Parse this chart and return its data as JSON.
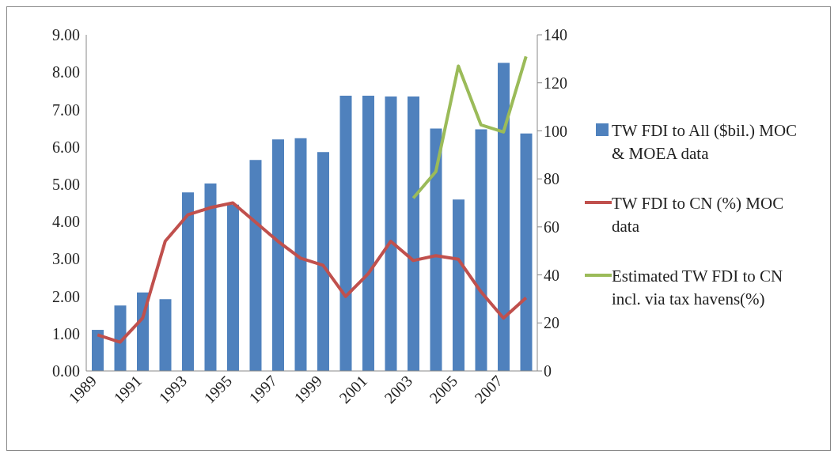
{
  "chart_data": {
    "type": "bar",
    "categories": [
      "1989",
      null,
      "1991",
      null,
      "1993",
      null,
      "1995",
      null,
      "1997",
      null,
      "1999",
      null,
      "2001",
      null,
      "2003",
      null,
      "2005",
      null,
      "2007",
      null
    ],
    "series": [
      {
        "name": "TW FDI to All ($bil.) MOC & MOEA  data",
        "color": "#4f81bd",
        "values": [
          1.1,
          1.75,
          2.1,
          1.92,
          4.78,
          5.02,
          4.45,
          5.65,
          6.2,
          6.23,
          5.86,
          7.37,
          7.37,
          7.35,
          7.35,
          6.49,
          4.59,
          6.47,
          8.25,
          6.36
        ]
      },
      {
        "name": "TW FDI to CN (%) MOC data",
        "type": "line",
        "axis": "y2",
        "color": "#c0504d",
        "values": [
          15,
          12,
          22,
          54,
          65,
          68,
          70,
          62,
          54,
          47,
          44,
          31,
          40.5,
          54,
          46,
          48,
          46.5,
          33,
          22,
          30.5
        ]
      },
      {
        "name": "Estimated TW FDI to CN incl. via tax havens(%)",
        "type": "line",
        "axis": "y2",
        "color": "#9bbb59",
        "values": [
          null,
          null,
          null,
          null,
          null,
          null,
          null,
          null,
          null,
          null,
          null,
          null,
          null,
          null,
          72,
          83,
          127,
          102.5,
          99.5,
          131
        ]
      }
    ],
    "ylim": [
      0,
      9
    ],
    "yticks": [
      {
        "value": 0,
        "label": "0.00"
      },
      {
        "value": 1,
        "label": "1.00"
      },
      {
        "value": 2,
        "label": "2.00"
      },
      {
        "value": 3,
        "label": "3.00"
      },
      {
        "value": 4,
        "label": "4.00"
      },
      {
        "value": 5,
        "label": "5.00"
      },
      {
        "value": 6,
        "label": "6.00"
      },
      {
        "value": 7,
        "label": "7.00"
      },
      {
        "value": 8,
        "label": "8.00"
      },
      {
        "value": 9,
        "label": "9.00"
      }
    ],
    "y2lim": [
      0,
      140
    ],
    "y2ticks": [
      0,
      20,
      40,
      60,
      80,
      100,
      120,
      140
    ],
    "grid": false,
    "legend": "right",
    "marker": "none",
    "line_style": "solid"
  }
}
